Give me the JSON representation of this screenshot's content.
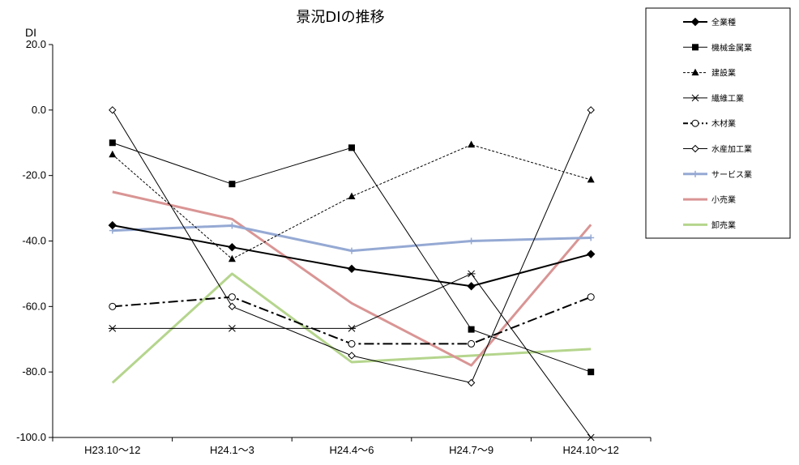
{
  "chart_data": {
    "type": "line",
    "title": "景況DIの推移",
    "ylabel": "DI",
    "xlabel": "",
    "ylim": [
      -100,
      20
    ],
    "yticks": [
      20,
      0,
      -20,
      -40,
      -60,
      -80,
      -100
    ],
    "ytick_labels": [
      "20.0",
      "0.0",
      "-20.0",
      "-40.0",
      "-60.0",
      "-80.0",
      "-100.0"
    ],
    "categories": [
      "H23.10～12",
      "H24.1～3",
      "H24.4～6",
      "H24.7～9",
      "H24.10～12"
    ],
    "grid": false,
    "legend_position": "top-right",
    "series": [
      {
        "name": "全業種",
        "values": [
          -35.2,
          -41.9,
          -48.5,
          -53.8,
          -44.0
        ],
        "color": "#000000",
        "width": 2,
        "dash": "",
        "marker": "diamond-filled"
      },
      {
        "name": "機械金属業",
        "values": [
          -10.0,
          -22.6,
          -11.5,
          -67.0,
          -80.0
        ],
        "color": "#000000",
        "width": 1,
        "dash": "",
        "marker": "square-filled"
      },
      {
        "name": "建設業",
        "values": [
          -13.6,
          -45.5,
          -26.4,
          -10.6,
          -21.3
        ],
        "color": "#000000",
        "width": 1,
        "dash": "3,2",
        "marker": "triangle-filled"
      },
      {
        "name": "繊維工業",
        "values": [
          -66.7,
          -66.7,
          -66.7,
          -50.0,
          -100.0
        ],
        "color": "#000000",
        "width": 1,
        "dash": "",
        "marker": "asterisk"
      },
      {
        "name": "木材業",
        "values": [
          -60.0,
          -57.1,
          -71.4,
          -71.4,
          -57.1
        ],
        "color": "#000000",
        "width": 2,
        "dash": "12,4,3,4",
        "marker": "circle-open"
      },
      {
        "name": "水産加工業",
        "values": [
          0.0,
          -60.0,
          -75.0,
          -83.3,
          0.0
        ],
        "color": "#000000",
        "width": 1,
        "dash": "",
        "marker": "diamond-open"
      },
      {
        "name": "サービス業",
        "values": [
          -36.8,
          -35.3,
          -43.0,
          -40.0,
          -39.0
        ],
        "color": "#95a9d3",
        "width": 3,
        "dash": "",
        "marker": "plus"
      },
      {
        "name": "小売業",
        "values": [
          -25.0,
          -33.3,
          -59.0,
          -78.0,
          -35.0
        ],
        "color": "#d99594",
        "width": 3,
        "dash": "",
        "marker": "none"
      },
      {
        "name": "卸売業",
        "values": [
          -83.3,
          -50.0,
          -77.0,
          -75.0,
          -73.0
        ],
        "color": "#b5d58d",
        "width": 3,
        "dash": "",
        "marker": "none"
      }
    ]
  }
}
